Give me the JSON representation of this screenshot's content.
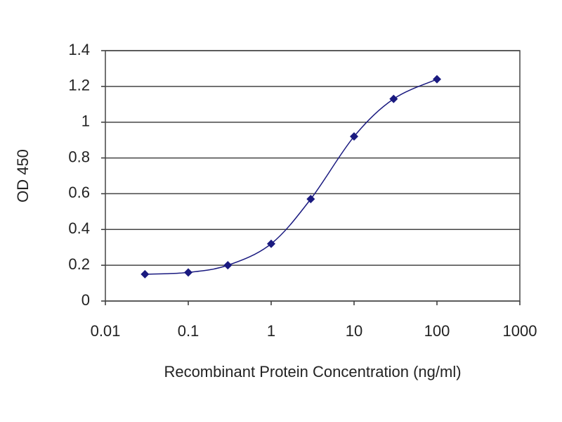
{
  "chart_data": {
    "type": "line",
    "x": [
      0.03,
      0.1,
      0.3,
      1,
      3,
      10,
      30,
      100
    ],
    "values": [
      0.15,
      0.16,
      0.2,
      0.32,
      0.57,
      0.92,
      1.13,
      1.24
    ],
    "color": "#1a1a80",
    "xlabel": "Recombinant Protein Concentration (ng/ml)",
    "ylabel": "OD 450",
    "xscale": "log",
    "xlim": [
      0.01,
      1000
    ],
    "xticks": [
      0.01,
      0.1,
      1,
      10,
      100,
      1000
    ],
    "ylim": [
      0,
      1.4
    ],
    "yticks": [
      0,
      0.2,
      0.4,
      0.6,
      0.8,
      1,
      1.2,
      1.4
    ],
    "grid": true
  }
}
